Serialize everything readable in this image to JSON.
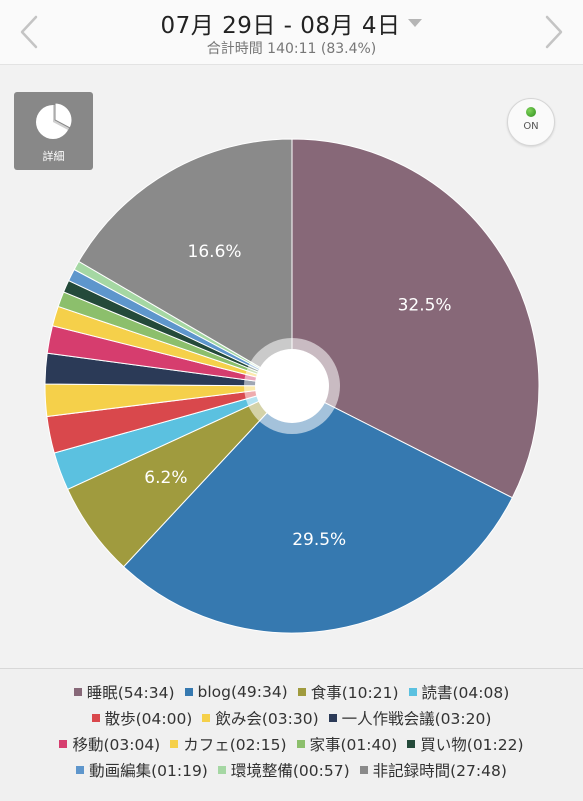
{
  "header": {
    "title": "07月 29日 - 08月 4日",
    "total": "合計時間 140:11 (83.4%)"
  },
  "detail_button": {
    "label": "詳細"
  },
  "on_toggle": {
    "label": "ON"
  },
  "chart_data": {
    "type": "pie",
    "slices": [
      {
        "label": "睡眠(54:34)",
        "value": 32.5,
        "color": "#876878",
        "pct_label": "32.5%"
      },
      {
        "label": "blog(49:34)",
        "value": 29.5,
        "color": "#3679b0",
        "pct_label": "29.5%"
      },
      {
        "label": "食事(10:21)",
        "value": 6.2,
        "color": "#a09b3e",
        "pct_label": "6.2%"
      },
      {
        "label": "読書(04:08)",
        "value": 2.5,
        "color": "#5bc1e0",
        "pct_label": ""
      },
      {
        "label": "散歩(04:00)",
        "value": 2.4,
        "color": "#d9484c",
        "pct_label": ""
      },
      {
        "label": "飲み会(03:30)",
        "value": 2.1,
        "color": "#f5d04a",
        "pct_label": ""
      },
      {
        "label": "一人作戦会議(03:20)",
        "value": 2.0,
        "color": "#2b3a57",
        "pct_label": ""
      },
      {
        "label": "移動(03:04)",
        "value": 1.8,
        "color": "#d63d6e",
        "pct_label": ""
      },
      {
        "label": "カフェ(02:15)",
        "value": 1.3,
        "color": "#f5d04a",
        "pct_label": ""
      },
      {
        "label": "家事(01:40)",
        "value": 1.0,
        "color": "#8cbf6c",
        "pct_label": ""
      },
      {
        "label": "買い物(01:22)",
        "value": 0.8,
        "color": "#244a3a",
        "pct_label": ""
      },
      {
        "label": "動画編集(01:19)",
        "value": 0.8,
        "color": "#5e96cc",
        "pct_label": ""
      },
      {
        "label": "環境整備(00:57)",
        "value": 0.6,
        "color": "#a5d7a3",
        "pct_label": ""
      },
      {
        "label": "非記録時間(27:48)",
        "value": 16.6,
        "color": "#8a8a8a",
        "pct_label": "16.6%"
      }
    ]
  },
  "legend": {
    "rows": [
      [
        {
          "label": "睡眠(54:34)",
          "color": "#876878"
        },
        {
          "label": "blog(49:34)",
          "color": "#3679b0"
        },
        {
          "label": "食事(10:21)",
          "color": "#a09b3e"
        },
        {
          "label": "読書(04:08)",
          "color": "#5bc1e0"
        }
      ],
      [
        {
          "label": "散歩(04:00)",
          "color": "#d9484c"
        },
        {
          "label": "飲み会(03:30)",
          "color": "#f5d04a"
        },
        {
          "label": "一人作戦会議(03:20)",
          "color": "#2b3a57"
        }
      ],
      [
        {
          "label": "移動(03:04)",
          "color": "#d63d6e"
        },
        {
          "label": "カフェ(02:15)",
          "color": "#f5d04a"
        },
        {
          "label": "家事(01:40)",
          "color": "#8cbf6c"
        },
        {
          "label": "買い物(01:22)",
          "color": "#244a3a"
        }
      ],
      [
        {
          "label": "動画編集(01:19)",
          "color": "#5e96cc"
        },
        {
          "label": "環境整備(00:57)",
          "color": "#a5d7a3"
        },
        {
          "label": "非記録時間(27:48)",
          "color": "#8a8a8a"
        }
      ]
    ]
  }
}
